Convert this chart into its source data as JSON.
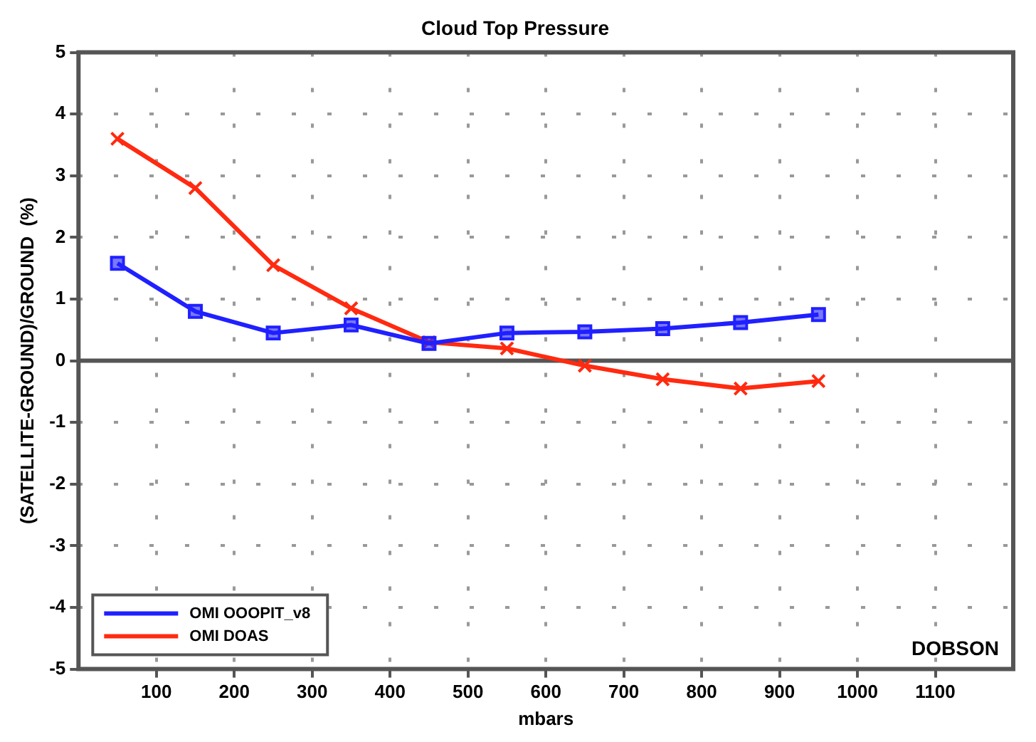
{
  "chart_data": {
    "type": "line",
    "title": "Cloud Top Pressure",
    "xlabel": "mbars",
    "ylabel": "(SATELLITE-GROUND)/GROUND  (%)",
    "x": [
      50,
      150,
      250,
      350,
      450,
      550,
      650,
      750,
      850,
      950
    ],
    "series": [
      {
        "name": "OMI OOOPIT_v8",
        "color": "#2020ff",
        "marker": "square",
        "values": [
          1.58,
          0.8,
          0.45,
          0.58,
          0.28,
          0.45,
          0.47,
          0.52,
          0.62,
          0.75
        ]
      },
      {
        "name": "OMI DOAS",
        "color": "#ff2a10",
        "marker": "cross",
        "values": [
          3.6,
          2.8,
          1.55,
          0.85,
          0.3,
          0.2,
          -0.08,
          -0.3,
          -0.45,
          -0.33
        ]
      }
    ],
    "xlim": [
      0,
      1200
    ],
    "xticks": [
      100,
      200,
      300,
      400,
      500,
      600,
      700,
      800,
      900,
      1000,
      1100
    ],
    "ylim": [
      -5,
      5
    ],
    "yticks": [
      -5,
      -4,
      -3,
      -2,
      -1,
      0,
      1,
      2,
      3,
      4,
      5
    ],
    "grid": true,
    "legend": "bottom left",
    "line_style": "solid",
    "ref_lines": [
      {
        "axis": "y",
        "value": 0,
        "color": "#555555"
      }
    ],
    "annotations": [
      "DOBSON"
    ]
  }
}
